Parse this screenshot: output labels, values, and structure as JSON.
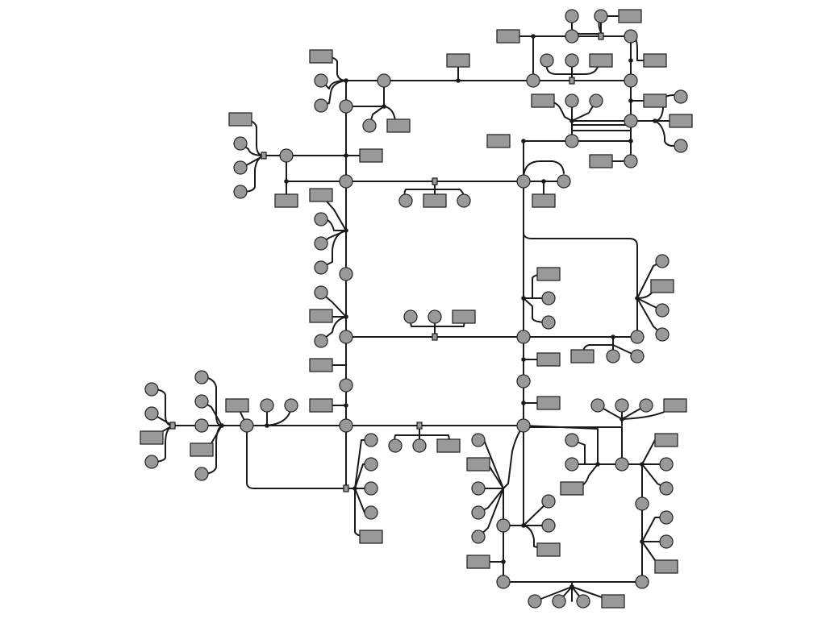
{
  "diagram": {
    "kind": "node-link network",
    "text_labels": [],
    "colors": {
      "node_fill": "#999999",
      "node_stroke": "#2a2a2a",
      "edge": "#1a1a1a",
      "background": "#ffffff"
    },
    "node_shapes": [
      "circle",
      "rectangle"
    ]
  }
}
